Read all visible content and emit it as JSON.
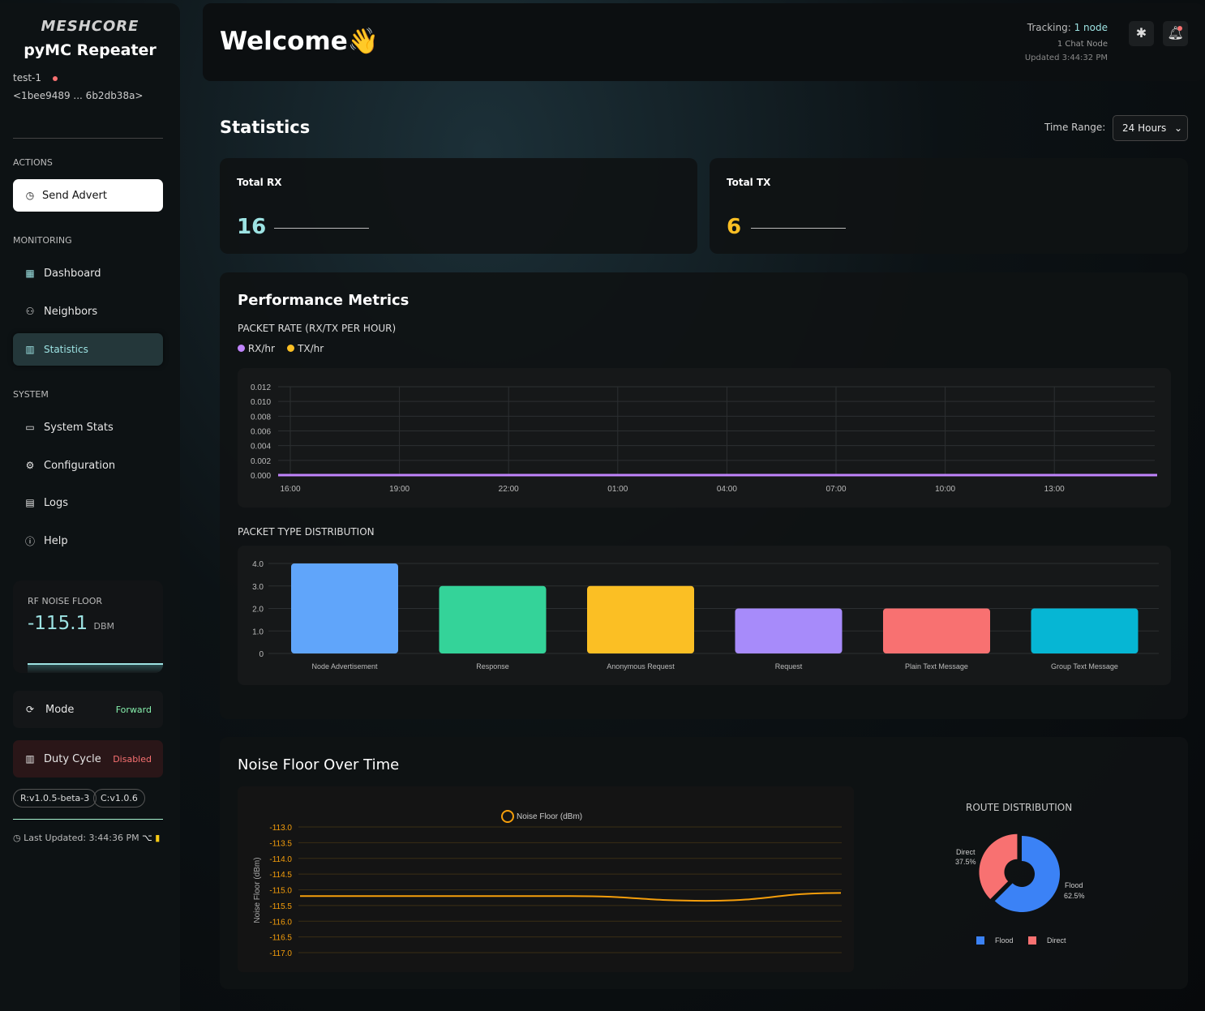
{
  "sidebar": {
    "logo": "MESHCORE",
    "app_name": "pyMC Repeater",
    "node_name": "test-1",
    "node_status_color": "#f87171",
    "node_key": "<1bee9489 ... 6b2db38a>",
    "actions_label": "ACTIONS",
    "send_advert": "Send Advert",
    "monitoring_label": "MONITORING",
    "monitoring_items": [
      {
        "label": "Dashboard",
        "icon": "grid-icon"
      },
      {
        "label": "Neighbors",
        "icon": "user-icon"
      },
      {
        "label": "Statistics",
        "icon": "bar-chart-icon",
        "active": true
      }
    ],
    "system_label": "SYSTEM",
    "system_items": [
      {
        "label": "System Stats",
        "icon": "monitor-icon"
      },
      {
        "label": "Configuration",
        "icon": "gear-icon"
      },
      {
        "label": "Logs",
        "icon": "file-icon"
      },
      {
        "label": "Help",
        "icon": "info-icon"
      }
    ],
    "rf": {
      "label": "RF NOISE FLOOR",
      "value": "-115.1",
      "unit": "DBM"
    },
    "mode": {
      "label": "Mode",
      "value": "Forward"
    },
    "duty": {
      "label": "Duty Cycle",
      "value": "Disabled"
    },
    "versions": [
      "R:v1.0.5-beta-3",
      "C:v1.0.6"
    ],
    "last_updated": "Last Updated: 3:44:36 PM"
  },
  "header": {
    "title": "Welcome",
    "emoji": "👋",
    "tracking_label": "Tracking:",
    "tracking_value": "1 node",
    "chat_nodes": "1 Chat Node",
    "updated": "Updated 3:44:32 PM"
  },
  "stats": {
    "title": "Statistics",
    "time_range_label": "Time Range:",
    "time_range_value": "24 Hours",
    "total_rx_label": "Total RX",
    "total_rx": "16",
    "total_tx_label": "Total TX",
    "total_tx": "6"
  },
  "performance": {
    "title": "Performance Metrics",
    "packet_rate_title": "PACKET RATE (RX/TX PER HOUR)",
    "distribution_title": "PACKET TYPE DISTRIBUTION"
  },
  "noise": {
    "title": "Noise Floor Over Time",
    "route_title": "ROUTE DISTRIBUTION"
  },
  "chart_data": [
    {
      "type": "line",
      "title": "PACKET RATE (RX/TX PER HOUR)",
      "x": [
        "16:00",
        "19:00",
        "22:00",
        "01:00",
        "04:00",
        "07:00",
        "10:00",
        "13:00"
      ],
      "yticks": [
        "0.012",
        "0.010",
        "0.008",
        "0.006",
        "0.004",
        "0.002",
        "0.000"
      ],
      "ylim": [
        0,
        0.012
      ],
      "grid": true,
      "series": [
        {
          "name": "RX/hr",
          "color": "#c084fc",
          "values": [
            0,
            0,
            0,
            0,
            0,
            0,
            0,
            0
          ]
        },
        {
          "name": "TX/hr",
          "color": "#fbbf24",
          "values": [
            0,
            0,
            0,
            0,
            0,
            0,
            0,
            0
          ]
        }
      ]
    },
    {
      "type": "bar",
      "title": "PACKET TYPE DISTRIBUTION",
      "categories": [
        "Node Advertisement",
        "Response",
        "Anonymous Request",
        "Request",
        "Plain Text Message",
        "Group Text Message"
      ],
      "values": [
        4,
        3,
        3,
        2,
        2,
        2
      ],
      "colors": [
        "#60a5fa",
        "#34d399",
        "#fbbf24",
        "#a78bfa",
        "#f87171",
        "#06b6d4"
      ],
      "yticks": [
        "4.0",
        "3.0",
        "2.0",
        "1.0",
        "0"
      ],
      "ylim": [
        0,
        4
      ]
    },
    {
      "type": "line",
      "title": "Noise Floor Over Time",
      "ylabel": "Noise Floor (dBm)",
      "series": [
        {
          "name": "Noise Floor (dBm)",
          "color": "#f59e0b",
          "values": [
            -115.2,
            -115.2,
            -115.2,
            -115.35,
            -115.1
          ]
        }
      ],
      "yticks": [
        "-113.0",
        "-113.5",
        "-114.0",
        "-114.5",
        "-115.0",
        "-115.5",
        "-116.0",
        "-116.5",
        "-117.0"
      ],
      "ylim": [
        -117,
        -113
      ]
    },
    {
      "type": "pie",
      "title": "ROUTE DISTRIBUTION",
      "categories": [
        "Flood",
        "Direct"
      ],
      "values": [
        62.5,
        37.5
      ],
      "labels": [
        "62.5%",
        "37.5%"
      ],
      "colors": [
        "#3b82f6",
        "#f87171"
      ]
    }
  ]
}
